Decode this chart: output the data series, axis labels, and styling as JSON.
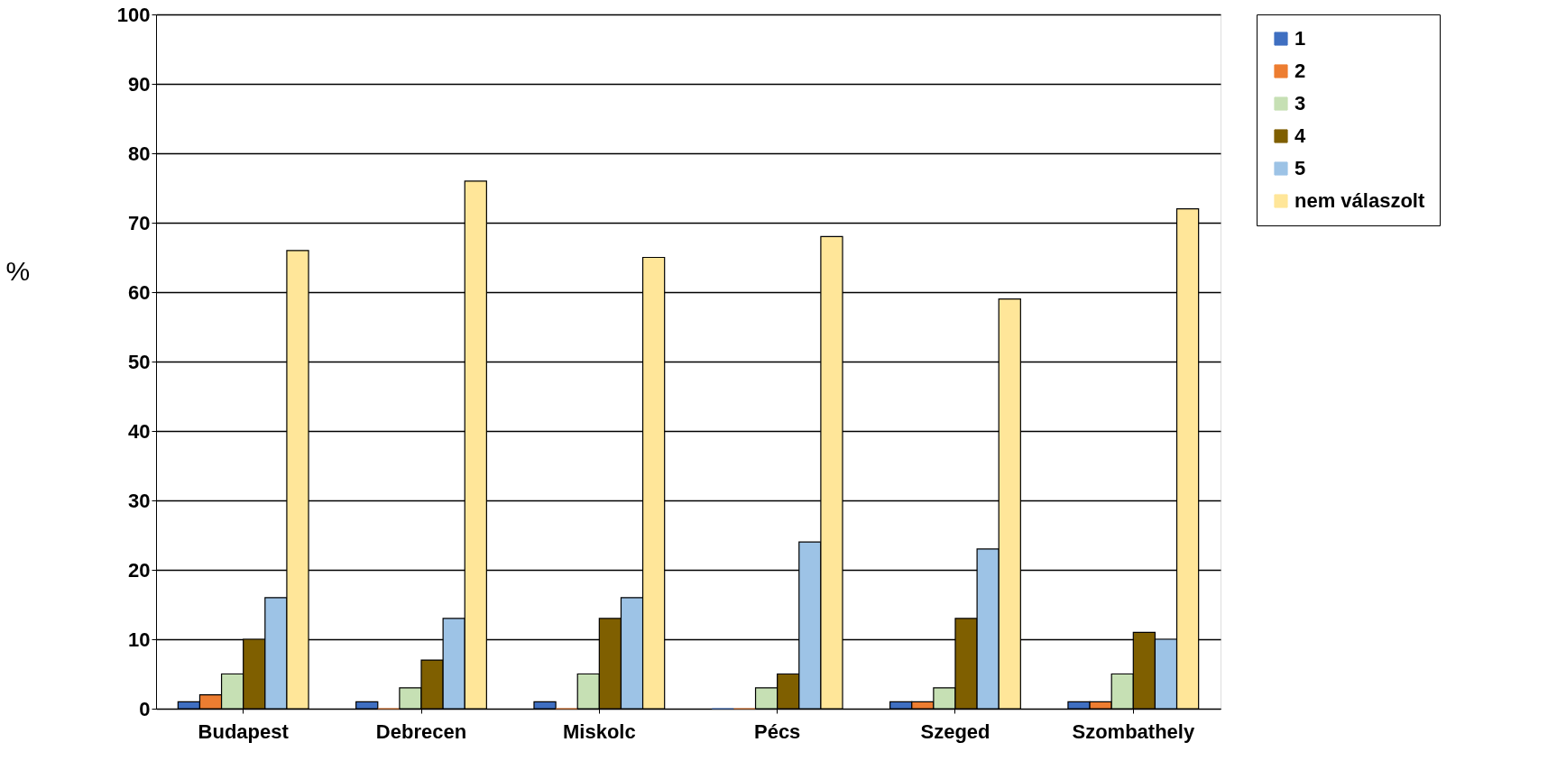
{
  "chart_data": {
    "type": "bar",
    "ylabel": "%",
    "categories": [
      "Budapest",
      "Debrecen",
      "Miskolc",
      "Pécs",
      "Szeged",
      "Szombathely"
    ],
    "series": [
      {
        "name": "1",
        "color": "#3f6fc1",
        "values": [
          1,
          1,
          1,
          0,
          1,
          1
        ]
      },
      {
        "name": "2",
        "color": "#ed7d31",
        "values": [
          2,
          0,
          0,
          0,
          1,
          1
        ]
      },
      {
        "name": "3",
        "color": "#c6e0b4",
        "values": [
          5,
          3,
          5,
          3,
          3,
          5
        ]
      },
      {
        "name": "4",
        "color": "#7f5f00",
        "values": [
          10,
          7,
          13,
          5,
          13,
          11
        ]
      },
      {
        "name": "5",
        "color": "#9dc3e6",
        "values": [
          16,
          13,
          16,
          24,
          23,
          10
        ]
      },
      {
        "name": "nem válaszolt",
        "color": "#ffe699",
        "values": [
          66,
          76,
          65,
          68,
          59,
          72
        ]
      }
    ],
    "ylim": [
      0,
      100
    ],
    "yticks": [
      0,
      10,
      20,
      30,
      40,
      50,
      60,
      70,
      80,
      90,
      100
    ],
    "grid": "y",
    "legend": "right"
  }
}
